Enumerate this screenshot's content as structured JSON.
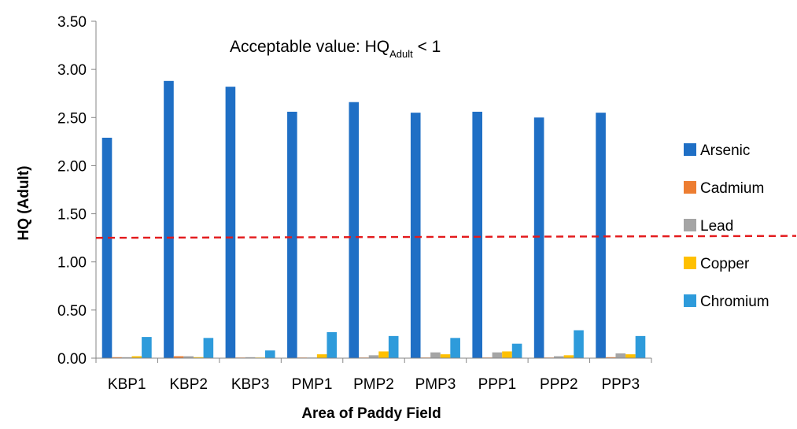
{
  "chart_data": {
    "type": "bar",
    "title": "",
    "xlabel": "Area of Paddy Field",
    "ylabel": "HQ (Adult)",
    "ylim": [
      0,
      3.5
    ],
    "yticks": [
      "0.00",
      "0.50",
      "1.00",
      "1.50",
      "2.00",
      "2.50",
      "3.00",
      "3.50"
    ],
    "grid": false,
    "legend_position": "right",
    "categories": [
      "KBP1",
      "KBP2",
      "KBP3",
      "PMP1",
      "PMP2",
      "PMP3",
      "PPP1",
      "PPP2",
      "PPP3"
    ],
    "series": [
      {
        "name": "Arsenic",
        "color": "#1F6FC5",
        "values": [
          2.29,
          2.88,
          2.82,
          2.56,
          2.66,
          2.55,
          2.56,
          2.5,
          2.55
        ]
      },
      {
        "name": "Cadmium",
        "color": "#ED7D31",
        "values": [
          0.01,
          0.02,
          0.005,
          0.005,
          0.005,
          0.005,
          0.005,
          0.005,
          0.01
        ]
      },
      {
        "name": "Lead",
        "color": "#A5A5A5",
        "values": [
          0.01,
          0.02,
          0.01,
          0.005,
          0.03,
          0.06,
          0.06,
          0.02,
          0.05
        ]
      },
      {
        "name": "Copper",
        "color": "#FFC000",
        "values": [
          0.02,
          0.01,
          0.005,
          0.04,
          0.07,
          0.04,
          0.07,
          0.03,
          0.04
        ]
      },
      {
        "name": "Chromium",
        "color": "#2E9BDB",
        "values": [
          0.22,
          0.21,
          0.08,
          0.27,
          0.23,
          0.21,
          0.15,
          0.29,
          0.23
        ]
      }
    ],
    "annotation": {
      "prefix": "Acceptable value: HQ",
      "subscript": "Adult",
      "suffix": " < 1"
    },
    "reference_line": {
      "style": "dashed",
      "color": "#E31A1C",
      "y_start": 1.25,
      "y_end": 1.27
    }
  }
}
